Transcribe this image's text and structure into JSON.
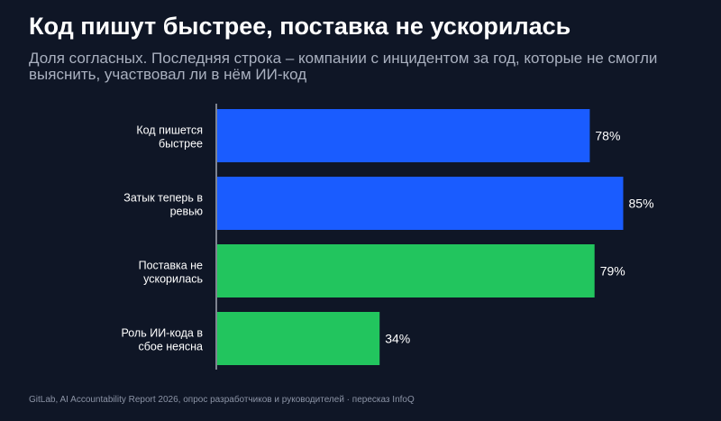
{
  "title": "Код пишут быстрее, поставка не ускорилась",
  "subtitle": "Доля согласных. Последняя строка – компании с инцидентом за год, которые не смогли выяснить, участвовал ли в нём ИИ-код",
  "source": "GitLab, AI Accountability Report 2026, опрос разработчиков и руководителей · пересказ InfoQ",
  "colors": {
    "background": "#0f1626",
    "blue": "#1a5cff",
    "green": "#22c55e",
    "axis": "#c7ccd6",
    "label": "#ffffff"
  },
  "chart_data": {
    "type": "bar",
    "orientation": "horizontal",
    "categories": [
      [
        "Код пишется",
        "быстрее"
      ],
      [
        "Затык теперь в",
        "ревью"
      ],
      [
        "Поставка не",
        "ускорилась"
      ],
      [
        "Роль ИИ-кода в",
        "сбое неясна"
      ]
    ],
    "values": [
      78,
      85,
      79,
      34
    ],
    "value_labels": [
      "78%",
      "85%",
      "79%",
      "34%"
    ],
    "bar_colors": [
      "#1a5cff",
      "#1a5cff",
      "#22c55e",
      "#22c55e"
    ],
    "xlim": [
      0,
      100
    ],
    "grid": false,
    "legend": "none"
  }
}
